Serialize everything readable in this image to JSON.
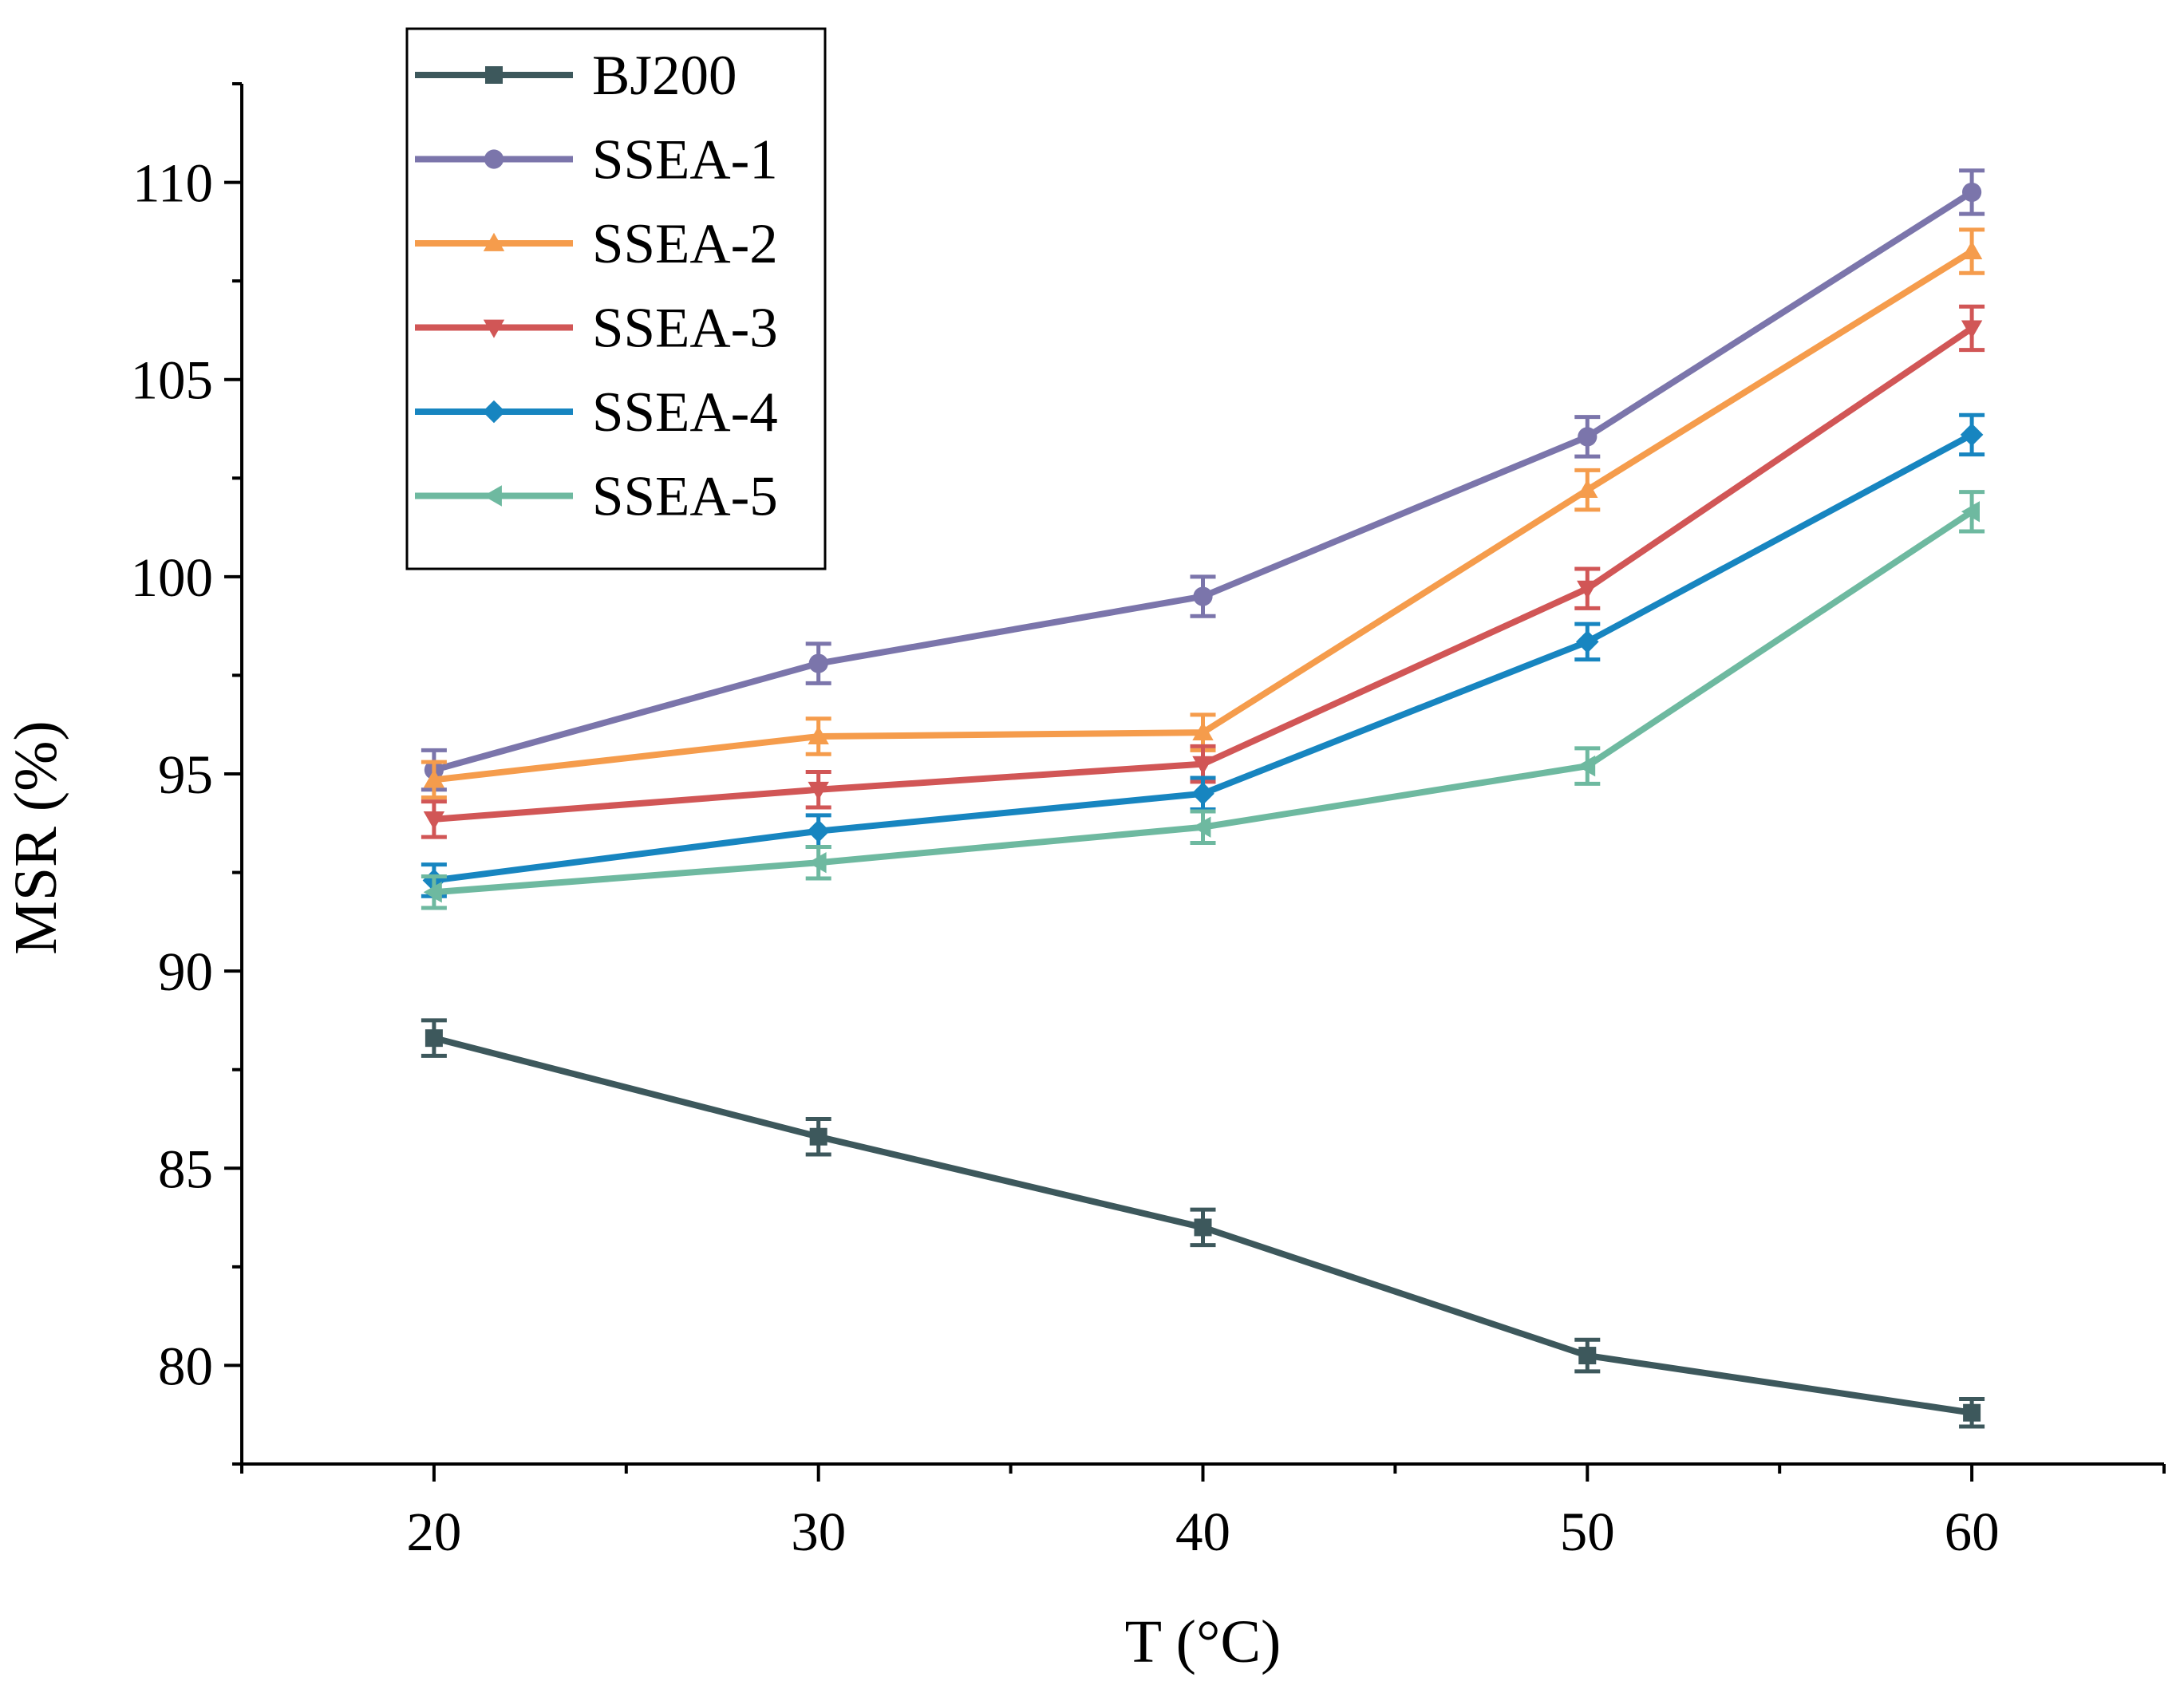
{
  "chart_data": {
    "type": "line",
    "title": "",
    "xlabel": "T (°C)",
    "ylabel": "MSR (%)",
    "x": [
      20,
      30,
      40,
      50,
      60
    ],
    "xlim": [
      15,
      65
    ],
    "ylim": [
      77.5,
      112.5
    ],
    "xticks": [
      20,
      30,
      40,
      50,
      60
    ],
    "yticks": [
      80,
      85,
      90,
      95,
      100,
      105,
      110
    ],
    "grid": false,
    "legend_position": "top-left",
    "series": [
      {
        "name": "BJ200",
        "marker": "square",
        "color": "#3d585c",
        "values": [
          88.3,
          85.8,
          83.5,
          80.25,
          78.8
        ],
        "errors": [
          0.45,
          0.45,
          0.45,
          0.4,
          0.35
        ]
      },
      {
        "name": "SSEA-1",
        "marker": "circle",
        "color": "#7b75ab",
        "values": [
          95.1,
          97.8,
          99.5,
          103.55,
          109.75
        ],
        "errors": [
          0.5,
          0.5,
          0.5,
          0.5,
          0.55
        ]
      },
      {
        "name": "SSEA-2",
        "marker": "triangle-up",
        "color": "#f59c4c",
        "values": [
          94.85,
          95.95,
          96.05,
          102.2,
          108.25
        ],
        "errors": [
          0.45,
          0.45,
          0.45,
          0.5,
          0.55
        ]
      },
      {
        "name": "SSEA-3",
        "marker": "triangle-down",
        "color": "#d15656",
        "values": [
          93.85,
          94.6,
          95.25,
          99.7,
          106.3
        ],
        "errors": [
          0.45,
          0.45,
          0.45,
          0.5,
          0.55
        ]
      },
      {
        "name": "SSEA-4",
        "marker": "diamond",
        "color": "#1785c0",
        "values": [
          92.3,
          93.55,
          94.5,
          98.35,
          103.6
        ],
        "errors": [
          0.4,
          0.4,
          0.4,
          0.45,
          0.5
        ]
      },
      {
        "name": "SSEA-5",
        "marker": "triangle-left",
        "color": "#6eb9a0",
        "values": [
          92.0,
          92.75,
          93.65,
          95.2,
          101.65
        ],
        "errors": [
          0.4,
          0.4,
          0.4,
          0.45,
          0.5
        ]
      }
    ]
  }
}
